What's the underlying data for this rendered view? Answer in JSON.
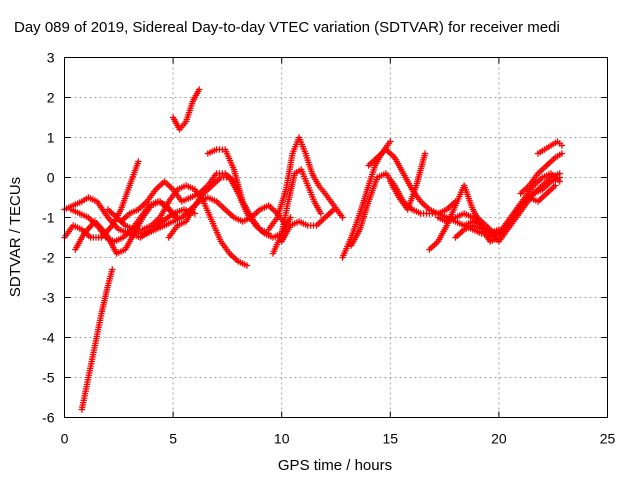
{
  "chart_data": {
    "type": "scatter",
    "title": "Day 089 of 2019, Sidereal Day-to-day VTEC variation (SDTVAR) for receiver medi",
    "xlabel": "GPS time / hours",
    "ylabel": "SDTVAR / TECUs",
    "xlim": [
      0,
      25
    ],
    "ylim": [
      -6,
      3
    ],
    "xticks": [
      "0",
      "5",
      "10",
      "15",
      "20",
      "25"
    ],
    "yticks": [
      "-6",
      "-5",
      "-4",
      "-3",
      "-2",
      "-1",
      "0",
      "1",
      "2",
      "3"
    ],
    "grid": true,
    "legend": "none",
    "marker": "plus",
    "color": "#ff0000",
    "series": [
      {
        "x": [
          0.8,
          1.1,
          1.4,
          1.7,
          2.0,
          2.2
        ],
        "y": [
          -5.8,
          -5.0,
          -4.2,
          -3.4,
          -2.7,
          -2.3
        ]
      },
      {
        "x": [
          0.0,
          0.4,
          0.8,
          1.2,
          1.7,
          2.2,
          2.6,
          3.0,
          3.4
        ],
        "y": [
          -1.5,
          -1.2,
          -1.3,
          -1.5,
          -1.5,
          -1.2,
          -0.8,
          -0.2,
          0.4
        ]
      },
      {
        "x": [
          0.0,
          0.4,
          0.8,
          1.1,
          1.5,
          2.0,
          2.5,
          3.0,
          3.5,
          4.0,
          4.5,
          5.0,
          5.5,
          6.0
        ],
        "y": [
          -0.8,
          -0.7,
          -0.6,
          -0.5,
          -0.6,
          -1.0,
          -1.3,
          -1.4,
          -1.5,
          -1.3,
          -1.1,
          -0.9,
          -0.8,
          -0.9
        ]
      },
      {
        "x": [
          0.5,
          0.9,
          1.4,
          1.9,
          2.4,
          2.8,
          3.2,
          3.6,
          4.0,
          4.4,
          4.8,
          5.2
        ],
        "y": [
          -1.8,
          -1.4,
          -1.1,
          -1.4,
          -1.9,
          -1.8,
          -1.4,
          -1.0,
          -0.7,
          -0.6,
          -0.8,
          -1.0
        ]
      },
      {
        "x": [
          0.3,
          0.7,
          1.1,
          1.5,
          1.9,
          2.3,
          2.7,
          3.1,
          3.5,
          3.9,
          4.3,
          4.7,
          5.1
        ],
        "y": [
          -0.8,
          -0.9,
          -1.0,
          -1.2,
          -1.5,
          -1.6,
          -1.5,
          -1.3,
          -1.0,
          -0.7,
          -0.6,
          -0.7,
          -1.0
        ]
      },
      {
        "x": [
          2.0,
          2.4,
          2.8,
          3.2,
          3.6,
          4.0,
          4.4,
          4.8,
          5.2,
          5.6,
          6.0,
          6.4,
          6.8,
          7.2,
          7.6,
          8.0,
          8.4
        ],
        "y": [
          -0.8,
          -1.0,
          -1.2,
          -1.3,
          -1.3,
          -1.2,
          -1.0,
          -0.6,
          -0.3,
          -0.2,
          -0.3,
          -0.6,
          -1.1,
          -1.6,
          -1.9,
          -2.1,
          -2.2
        ]
      },
      {
        "x": [
          3.4,
          3.8,
          4.2,
          4.6,
          5.0,
          5.4,
          5.8,
          6.2,
          6.6,
          7.0,
          7.4,
          7.8,
          8.2,
          8.6,
          9.0,
          9.4,
          9.8,
          10.2
        ],
        "y": [
          -1.4,
          -1.4,
          -1.3,
          -1.2,
          -1.1,
          -1.0,
          -0.8,
          -0.6,
          -0.5,
          -0.6,
          -0.8,
          -1.0,
          -1.1,
          -1.0,
          -0.8,
          -0.7,
          -0.9,
          -1.2
        ]
      },
      {
        "x": [
          2.6,
          3.0,
          3.4,
          3.8,
          4.2,
          4.6,
          5.0,
          5.4,
          5.8,
          6.2,
          6.6,
          7.0,
          7.4,
          7.8
        ],
        "y": [
          -1.1,
          -0.9,
          -0.8,
          -0.6,
          -0.3,
          -0.1,
          -0.3,
          -0.6,
          -0.5,
          -0.4,
          -0.2,
          0.1,
          0.1,
          -0.1
        ]
      },
      {
        "x": [
          4.8,
          5.2,
          5.6,
          6.0,
          6.4,
          6.8,
          7.2,
          7.6,
          8.0,
          8.4,
          8.8,
          9.2,
          9.6,
          10.0,
          10.4
        ],
        "y": [
          -1.5,
          -1.2,
          -1.1,
          -0.7,
          -0.4,
          -0.2,
          0.0,
          0.0,
          -0.4,
          -0.9,
          -1.2,
          -1.4,
          -1.5,
          -1.4,
          -1.0
        ]
      },
      {
        "x": [
          5.0,
          5.3,
          5.6,
          5.9,
          6.2
        ],
        "y": [
          1.5,
          1.2,
          1.4,
          1.9,
          2.2
        ]
      },
      {
        "x": [
          6.6,
          7.0,
          7.4,
          7.8,
          8.2,
          8.6,
          9.0,
          9.4
        ],
        "y": [
          0.6,
          0.7,
          0.7,
          0.2,
          -0.6,
          -1.0,
          -1.3,
          -1.4
        ]
      },
      {
        "x": [
          9.4,
          9.8,
          10.2,
          10.5,
          10.8,
          11.1,
          11.4,
          11.7,
          12.0,
          12.4,
          12.8
        ],
        "y": [
          -1.3,
          -1.0,
          -0.3,
          0.6,
          1.0,
          0.6,
          0.1,
          -0.2,
          -0.4,
          -0.7,
          -1.0
        ]
      },
      {
        "x": [
          9.6,
          10.0,
          10.3,
          10.6,
          10.9,
          11.2,
          11.5,
          11.8
        ],
        "y": [
          -1.9,
          -1.4,
          -0.6,
          0.1,
          0.2,
          -0.2,
          -0.6,
          -0.9
        ]
      },
      {
        "x": [
          10.0,
          10.4,
          10.8,
          11.2,
          11.6,
          12.0,
          12.4
        ],
        "y": [
          -1.6,
          -1.2,
          -1.1,
          -1.2,
          -1.2,
          -1.0,
          -0.8
        ]
      },
      {
        "x": [
          12.8,
          13.2,
          13.6,
          14.0,
          14.3,
          14.6,
          15.0
        ],
        "y": [
          -2.0,
          -1.5,
          -0.9,
          -0.2,
          0.3,
          0.6,
          0.9
        ]
      },
      {
        "x": [
          13.2,
          13.6,
          14.0,
          14.4,
          14.8,
          15.2,
          15.6,
          16.0,
          16.4,
          16.8,
          17.2,
          17.6,
          18.0
        ],
        "y": [
          -1.7,
          -1.3,
          -0.6,
          0.0,
          0.1,
          -0.2,
          -0.6,
          -0.8,
          -0.9,
          -0.9,
          -0.9,
          -0.8,
          -0.6
        ]
      },
      {
        "x": [
          14.0,
          14.4,
          14.8,
          15.2,
          15.6,
          16.0,
          16.4,
          16.8,
          17.2,
          17.6,
          18.0,
          18.4,
          18.8,
          19.2,
          19.6,
          20.0
        ],
        "y": [
          0.3,
          0.5,
          0.7,
          0.5,
          0.1,
          -0.3,
          -0.6,
          -0.8,
          -0.9,
          -1.0,
          -1.1,
          -1.2,
          -1.3,
          -1.4,
          -1.4,
          -1.3
        ]
      },
      {
        "x": [
          15.0,
          15.4,
          15.8,
          16.2,
          16.6
        ],
        "y": [
          -0.1,
          -0.5,
          -0.8,
          -0.2,
          0.6
        ]
      },
      {
        "x": [
          16.8,
          17.2,
          17.6,
          18.0,
          18.4,
          18.8,
          19.2
        ],
        "y": [
          -1.8,
          -1.6,
          -1.2,
          -0.7,
          -0.2,
          -0.8,
          -1.2
        ]
      },
      {
        "x": [
          17.2,
          17.6,
          18.0,
          18.4,
          18.8,
          19.2,
          19.6,
          20.0,
          20.4,
          20.8,
          21.2,
          21.6,
          22.0,
          22.4,
          22.8
        ],
        "y": [
          -1.0,
          -1.1,
          -1.0,
          -0.9,
          -1.0,
          -1.2,
          -1.5,
          -1.4,
          -1.1,
          -0.8,
          -0.5,
          -0.2,
          0.0,
          0.1,
          -0.1
        ]
      },
      {
        "x": [
          18.0,
          18.4,
          18.8,
          19.2,
          19.6,
          20.0,
          20.4,
          20.8,
          21.2,
          21.6,
          22.0,
          22.4,
          22.8
        ],
        "y": [
          -1.5,
          -1.3,
          -1.2,
          -1.3,
          -1.6,
          -1.5,
          -1.2,
          -0.9,
          -0.6,
          -0.4,
          -0.3,
          -0.1,
          0.0
        ]
      },
      {
        "x": [
          18.4,
          18.8,
          19.2,
          19.6,
          20.0,
          20.4,
          20.8,
          21.2,
          21.6,
          22.0,
          22.4,
          22.8
        ],
        "y": [
          -1.2,
          -1.1,
          -1.2,
          -1.4,
          -1.6,
          -1.3,
          -1.0,
          -0.7,
          -0.4,
          -0.2,
          0.0,
          0.1
        ]
      },
      {
        "x": [
          19.0,
          19.4,
          19.8,
          20.2,
          20.6,
          21.0,
          21.4,
          21.8,
          22.2,
          22.6
        ],
        "y": [
          -1.0,
          -1.2,
          -1.4,
          -1.3,
          -1.0,
          -0.7,
          -0.5,
          -0.6,
          -0.4,
          -0.2
        ]
      },
      {
        "x": [
          21.0,
          21.4,
          21.8,
          22.2,
          22.6,
          22.9
        ],
        "y": [
          -0.4,
          -0.2,
          0.1,
          0.3,
          0.5,
          0.6
        ]
      },
      {
        "x": [
          21.8,
          22.1,
          22.4,
          22.7,
          22.9
        ],
        "y": [
          0.6,
          0.7,
          0.8,
          0.9,
          0.8
        ]
      }
    ]
  }
}
